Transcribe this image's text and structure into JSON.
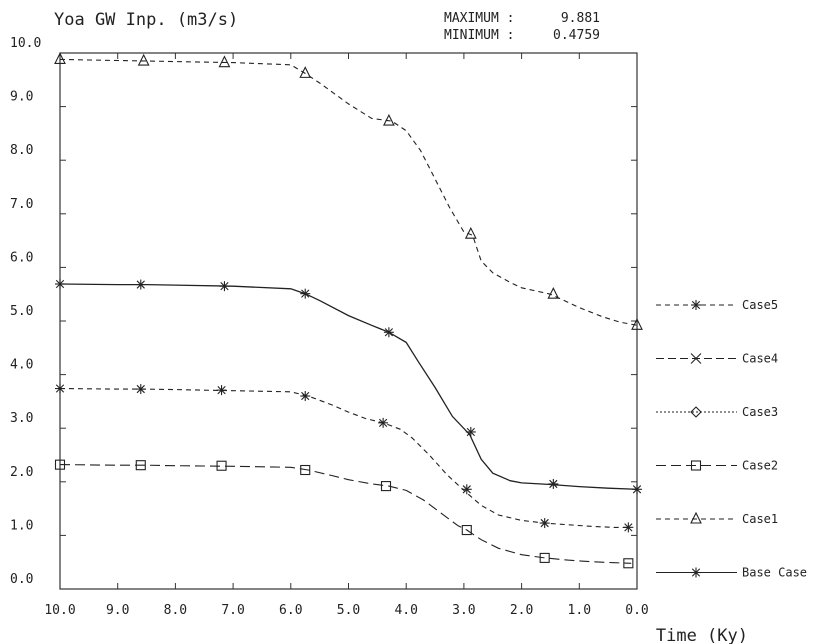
{
  "chart_data": {
    "type": "line",
    "title": "Yoa GW Inp. (m3/s)",
    "stats": {
      "max_label": "MAXIMUM :",
      "max_value": "9.881",
      "min_label": "MINIMUM :",
      "min_value": "0.4759"
    },
    "xlabel": "Time (Ky)",
    "ylabel": "",
    "xlim": [
      10.0,
      0.0
    ],
    "ylim": [
      0.0,
      10.0
    ],
    "x_reversed": true,
    "xticks": [
      "10.0",
      "9.0",
      "8.0",
      "7.0",
      "6.0",
      "5.0",
      "4.0",
      "3.0",
      "2.0",
      "1.0",
      "0.0"
    ],
    "yticks": [
      "10.0",
      "9.0",
      "8.0",
      "7.0",
      "6.0",
      "5.0",
      "4.0",
      "3.0",
      "2.0",
      "1.0",
      "0.0"
    ],
    "grid": false,
    "legend_position": "right",
    "series": [
      {
        "name": "Case1",
        "marker": "triangle",
        "dash": "5,4",
        "x": [
          10.0,
          9.5,
          9.0,
          8.5,
          8.0,
          7.5,
          7.0,
          6.5,
          6.0,
          5.75,
          5.5,
          5.0,
          4.6,
          4.25,
          4.0,
          3.75,
          3.5,
          3.25,
          3.0,
          2.85,
          2.7,
          2.5,
          2.2,
          2.0,
          1.5,
          1.2,
          1.0,
          0.6,
          0.3,
          0.0
        ],
        "y": [
          9.88,
          9.87,
          9.86,
          9.85,
          9.84,
          9.83,
          9.82,
          9.8,
          9.78,
          9.62,
          9.44,
          9.05,
          8.78,
          8.73,
          8.55,
          8.18,
          7.65,
          7.12,
          6.66,
          6.6,
          6.12,
          5.9,
          5.72,
          5.62,
          5.5,
          5.35,
          5.25,
          5.08,
          4.98,
          4.92
        ],
        "markers_x": [
          10.0,
          8.55,
          7.15,
          5.75,
          4.3,
          2.88,
          1.45,
          0.0
        ],
        "markers_y": [
          9.88,
          9.85,
          9.82,
          9.62,
          8.73,
          6.62,
          5.5,
          4.92
        ]
      },
      {
        "name": "Case2",
        "marker": "square",
        "dash": "10,5",
        "x": [
          10.0,
          9.0,
          8.5,
          8.0,
          7.0,
          6.0,
          5.7,
          5.3,
          5.0,
          4.6,
          4.3,
          4.0,
          3.7,
          3.4,
          3.1,
          2.95,
          2.7,
          2.4,
          2.0,
          1.6,
          1.2,
          0.8,
          0.4,
          0.1
        ],
        "y": [
          2.32,
          2.31,
          2.31,
          2.3,
          2.29,
          2.27,
          2.22,
          2.12,
          2.04,
          1.96,
          1.92,
          1.84,
          1.66,
          1.42,
          1.18,
          1.1,
          0.92,
          0.76,
          0.64,
          0.58,
          0.54,
          0.51,
          0.49,
          0.48
        ],
        "markers_x": [
          10.0,
          8.6,
          7.2,
          5.75,
          4.35,
          2.95,
          1.6,
          0.15
        ],
        "markers_y": [
          2.32,
          2.31,
          2.3,
          2.22,
          1.92,
          1.1,
          0.58,
          0.48
        ]
      },
      {
        "name": "Case3",
        "marker": "diamond",
        "dash": "2,2",
        "x": [],
        "y": [],
        "markers_x": [],
        "markers_y": []
      },
      {
        "name": "Case4",
        "marker": "x",
        "dash": "8,4",
        "x": [],
        "y": [],
        "markers_x": [],
        "markers_y": []
      },
      {
        "name": "Case5",
        "marker": "asterisk",
        "dash": "5,4",
        "x": [
          10.0,
          9.0,
          8.5,
          8.0,
          7.0,
          6.0,
          5.7,
          5.3,
          5.0,
          4.7,
          4.4,
          4.1,
          3.9,
          3.6,
          3.3,
          3.0,
          2.7,
          2.4,
          2.0,
          1.6,
          1.2,
          0.8,
          0.4,
          0.1
        ],
        "y": [
          3.74,
          3.73,
          3.73,
          3.72,
          3.7,
          3.68,
          3.6,
          3.44,
          3.3,
          3.18,
          3.1,
          2.98,
          2.82,
          2.5,
          2.14,
          1.84,
          1.56,
          1.38,
          1.28,
          1.23,
          1.2,
          1.17,
          1.15,
          1.15
        ],
        "markers_x": [
          10.0,
          8.6,
          7.2,
          5.75,
          4.4,
          2.95,
          1.6,
          0.15
        ],
        "markers_y": [
          3.74,
          3.73,
          3.71,
          3.6,
          3.1,
          1.86,
          1.23,
          1.15
        ]
      },
      {
        "name": "Base Case",
        "marker": "asterisk",
        "dash": "",
        "x": [
          10.0,
          9.0,
          8.5,
          8.0,
          7.0,
          6.0,
          5.75,
          5.5,
          5.0,
          4.6,
          4.3,
          4.0,
          3.8,
          3.5,
          3.2,
          2.9,
          2.7,
          2.5,
          2.2,
          2.0,
          1.5,
          1.0,
          0.5,
          0.0
        ],
        "y": [
          5.69,
          5.68,
          5.68,
          5.67,
          5.65,
          5.6,
          5.51,
          5.38,
          5.1,
          4.92,
          4.79,
          4.6,
          4.26,
          3.76,
          3.22,
          2.88,
          2.42,
          2.16,
          2.02,
          1.98,
          1.95,
          1.91,
          1.88,
          1.86
        ],
        "markers_x": [
          10.0,
          8.6,
          7.15,
          5.75,
          4.3,
          2.88,
          1.45,
          0.0
        ],
        "markers_y": [
          5.69,
          5.68,
          5.65,
          5.51,
          4.79,
          2.93,
          1.96,
          1.86
        ]
      }
    ],
    "legend_order": [
      "Case5",
      "Case4",
      "Case3",
      "Case2",
      "Case1",
      "Base Case"
    ]
  }
}
